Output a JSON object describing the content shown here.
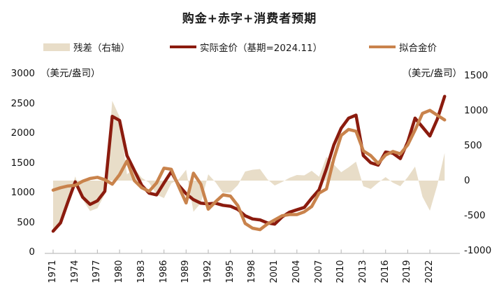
{
  "title": "购金+赤字+消费者预期",
  "legend": {
    "items": [
      {
        "label": "残差（右轴）",
        "type": "area",
        "color": "#E8DDC8"
      },
      {
        "label": "实际金价（基期=2024.11）",
        "type": "line",
        "color": "#8B1B0E"
      },
      {
        "label": "拟合金价",
        "type": "line",
        "color": "#C9834C"
      }
    ]
  },
  "left_axis_unit": "（美元/盎司）",
  "right_axis_unit": "（美元/盎司）",
  "chart_data": {
    "type": "combo_line_area",
    "title": "购金+赤字+消费者预期",
    "x": [
      1971,
      1972,
      1973,
      1974,
      1975,
      1976,
      1977,
      1978,
      1979,
      1980,
      1981,
      1982,
      1983,
      1984,
      1985,
      1986,
      1987,
      1988,
      1989,
      1990,
      1991,
      1992,
      1993,
      1994,
      1995,
      1996,
      1997,
      1998,
      1999,
      2000,
      2001,
      2002,
      2003,
      2004,
      2005,
      2006,
      2007,
      2008,
      2009,
      2010,
      2011,
      2012,
      2013,
      2014,
      2015,
      2016,
      2017,
      2018,
      2019,
      2020,
      2021,
      2022,
      2023,
      2024
    ],
    "series": [
      {
        "name": "残差（右轴）",
        "type": "area",
        "axis": "right",
        "color": "#E8DDC8",
        "values": [
          -690,
          -590,
          -270,
          60,
          -270,
          -435,
          -395,
          -195,
          1140,
          910,
          90,
          170,
          40,
          -30,
          -200,
          -250,
          -40,
          20,
          155,
          -445,
          -320,
          90,
          -25,
          -175,
          -170,
          -65,
          130,
          155,
          165,
          20,
          -70,
          -20,
          40,
          80,
          75,
          140,
          55,
          340,
          230,
          120,
          190,
          270,
          -80,
          -120,
          -30,
          50,
          -30,
          -80,
          50,
          200,
          -230,
          -430,
          -70,
          395
        ]
      },
      {
        "name": "实际金价（基期=2024.11）",
        "type": "line",
        "axis": "left",
        "color": "#8B1B0E",
        "values": [
          350,
          490,
          840,
          1180,
          920,
          800,
          860,
          1020,
          2280,
          2210,
          1620,
          1370,
          1120,
          990,
          960,
          1160,
          1350,
          1120,
          980,
          880,
          820,
          810,
          820,
          785,
          770,
          715,
          610,
          555,
          540,
          490,
          470,
          590,
          670,
          710,
          750,
          905,
          1045,
          1400,
          1800,
          2080,
          2250,
          2300,
          1620,
          1500,
          1460,
          1680,
          1660,
          1570,
          1850,
          2250,
          2100,
          1950,
          2230,
          2615
        ]
      },
      {
        "name": "拟合金价",
        "type": "line",
        "axis": "left",
        "color": "#C9834C",
        "values": [
          1040,
          1080,
          1110,
          1120,
          1190,
          1235,
          1255,
          1215,
          1140,
          1300,
          1530,
          1200,
          1080,
          1020,
          1160,
          1410,
          1390,
          1100,
          825,
          1325,
          1140,
          720,
          845,
          960,
          940,
          780,
          480,
          400,
          375,
          470,
          540,
          610,
          630,
          630,
          675,
          765,
          990,
          1060,
          1570,
          1960,
          2060,
          2030,
          1700,
          1620,
          1490,
          1630,
          1690,
          1650,
          1800,
          2050,
          2330,
          2380,
          2300,
          2220
        ]
      }
    ],
    "left_axis": {
      "unit": "（美元/盎司）",
      "min": 0,
      "max": 3000,
      "ticks": [
        0,
        500,
        1000,
        1500,
        2000,
        2500,
        3000
      ]
    },
    "right_axis": {
      "unit": "（美元/盎司）",
      "min": -1000,
      "max": 1500,
      "ticks": [
        -1000,
        -500,
        0,
        500,
        1000,
        1500
      ]
    },
    "x_axis": {
      "tick_years": [
        1971,
        1974,
        1977,
        1980,
        1983,
        1986,
        1989,
        1992,
        1995,
        1998,
        2001,
        2004,
        2007,
        2010,
        2013,
        2016,
        2019,
        2022
      ]
    },
    "grid": false,
    "legend_position": "top"
  },
  "colors": {
    "residual": "#E8DDC8",
    "actual": "#8B1B0E",
    "fitted": "#C9834C",
    "axis": "#BFBFBF",
    "text": "#111111"
  }
}
